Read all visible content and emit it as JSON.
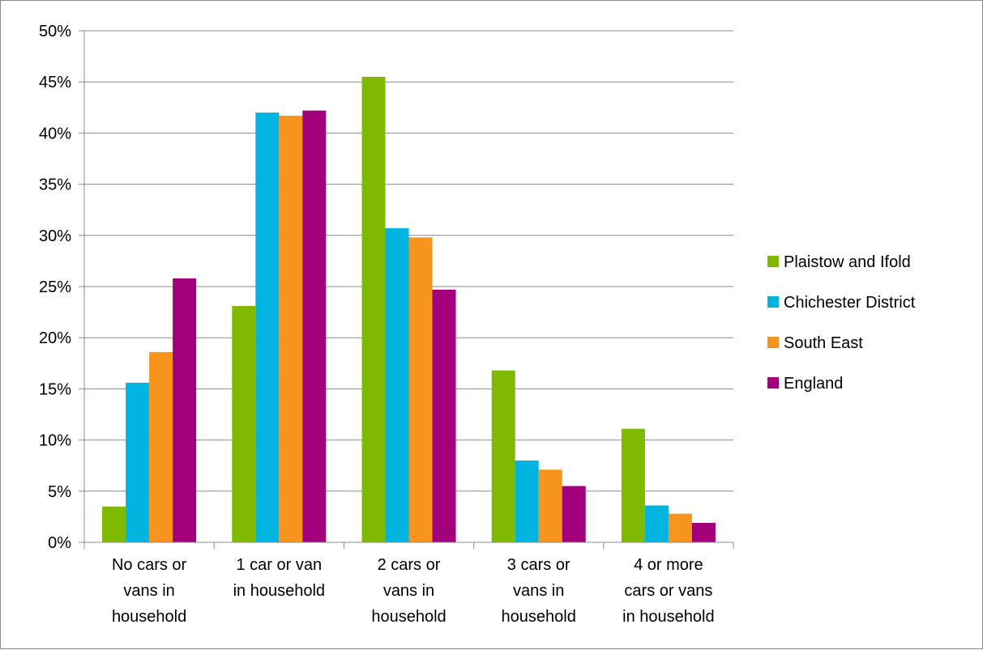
{
  "chart_data": {
    "type": "bar",
    "categories": [
      [
        "No cars or",
        "vans in",
        "household"
      ],
      [
        "1 car or van",
        "in household"
      ],
      [
        "2 cars or",
        "vans in",
        "household"
      ],
      [
        "3 cars or",
        "vans in",
        "household"
      ],
      [
        "4 or more",
        "cars or vans",
        "in household"
      ]
    ],
    "series": [
      {
        "name": "Plaistow and Ifold",
        "color": "#7fba00",
        "values": [
          3.5,
          23.1,
          45.5,
          16.8,
          11.1
        ]
      },
      {
        "name": "Chichester District",
        "color": "#00b4e0",
        "values": [
          15.6,
          42.0,
          30.7,
          8.0,
          3.6
        ]
      },
      {
        "name": "South East",
        "color": "#f7941d",
        "values": [
          18.6,
          41.7,
          29.8,
          7.1,
          2.8
        ]
      },
      {
        "name": "England",
        "color": "#a3007d",
        "values": [
          25.8,
          42.2,
          24.7,
          5.5,
          1.9
        ]
      }
    ],
    "ylim": [
      0,
      50
    ],
    "yticks": [
      "0%",
      "5%",
      "10%",
      "15%",
      "20%",
      "25%",
      "30%",
      "35%",
      "40%",
      "45%",
      "50%"
    ],
    "grid": true,
    "legend_position": "right"
  }
}
